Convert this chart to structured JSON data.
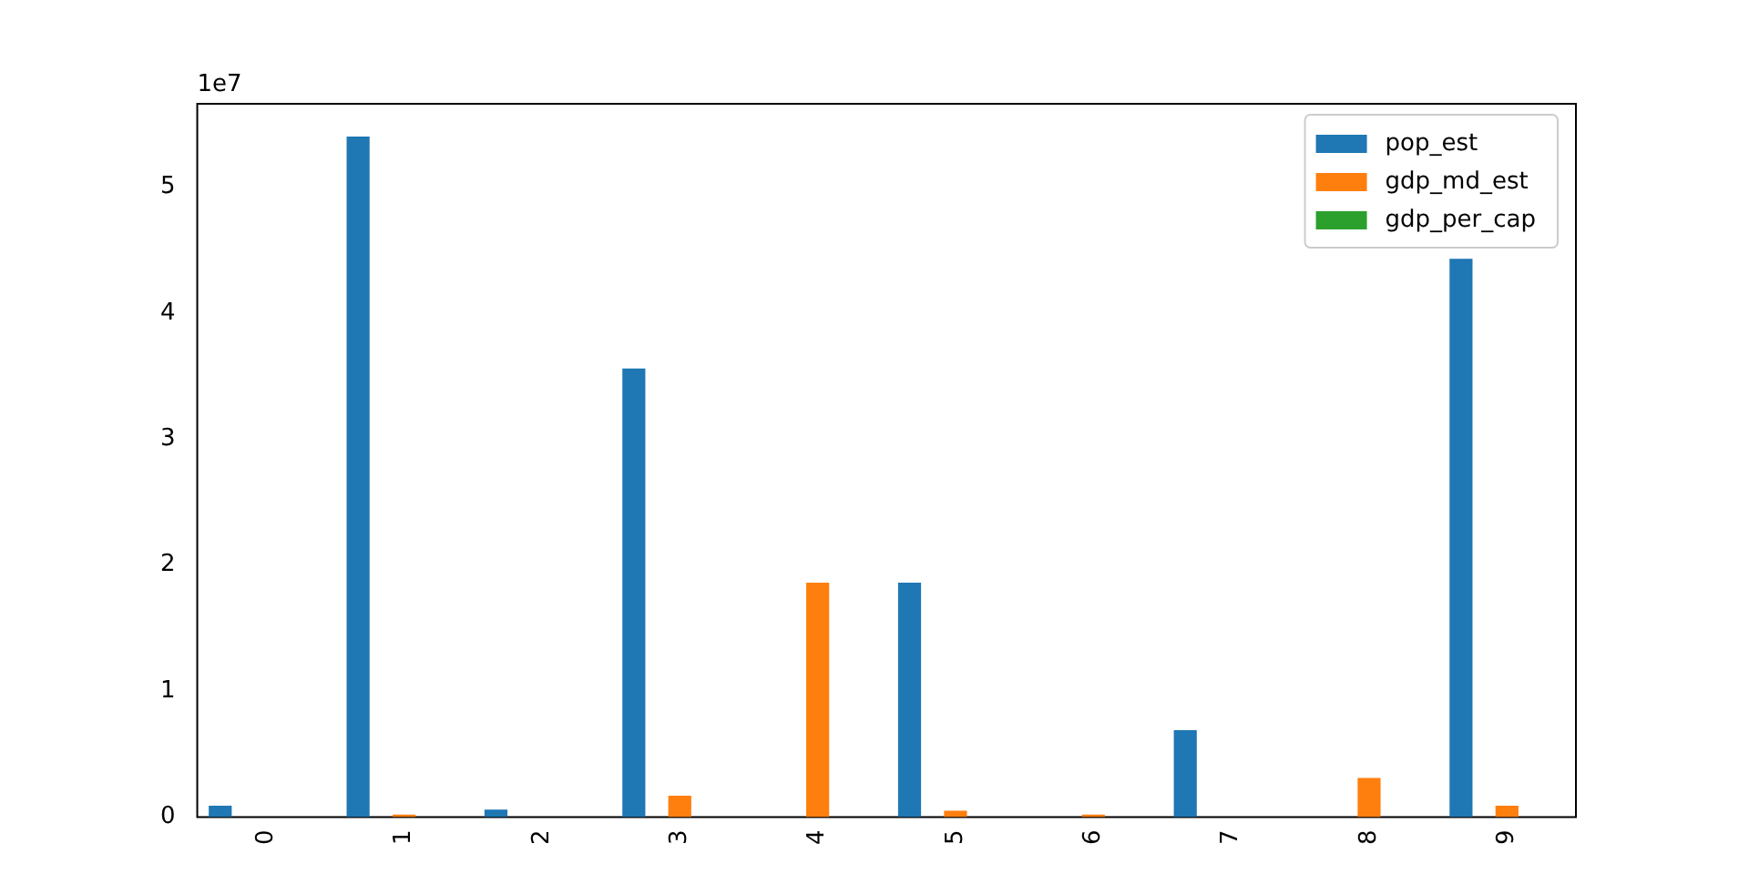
{
  "chart_data": {
    "type": "bar",
    "categories": [
      "0",
      "1",
      "2",
      "3",
      "4",
      "5",
      "6",
      "7",
      "8",
      "9"
    ],
    "series": [
      {
        "name": "pop_est",
        "color": "#1f77b4",
        "values": [
          0.09,
          5.4,
          0.06,
          3.56,
          0,
          1.86,
          0,
          0.69,
          0,
          4.43
        ]
      },
      {
        "name": "gdp_md_est",
        "color": "#ff7f0e",
        "values": [
          0,
          0.02,
          0,
          0.17,
          1.86,
          0.05,
          0.02,
          0,
          0.31,
          0.09
        ]
      },
      {
        "name": "gdp_per_cap",
        "color": "#2ca02c",
        "values": [
          0,
          0,
          0,
          0,
          0,
          0,
          0,
          0,
          0,
          0
        ]
      }
    ],
    "ylim": [
      0,
      5.66
    ],
    "yticks": [
      0,
      1,
      2,
      3,
      4,
      5
    ],
    "grid": false,
    "legend": "top right",
    "annotations": [
      "1e7"
    ]
  }
}
